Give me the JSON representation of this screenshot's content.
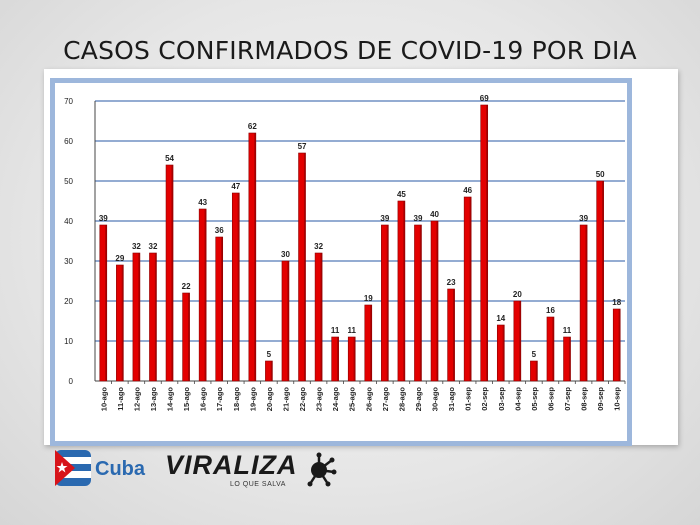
{
  "title": "CASOS CONFIRMADOS DE COVID-19 POR DIA",
  "logos": {
    "cuba": "Cuba",
    "viraliza": "VIRALIZA",
    "viraliza_tagline": "LO QUE SALVA"
  },
  "colors": {
    "bar": "#e30000",
    "bar_dark": "#8b0000",
    "grid": "#2a5aa6",
    "frame_border": "#9db7dc"
  },
  "chart_data": {
    "type": "bar",
    "title": "CASOS CONFIRMADOS DE COVID-19 POR DIA",
    "xlabel": "",
    "ylabel": "",
    "ylim": [
      0,
      70
    ],
    "yticks": [
      0,
      10,
      20,
      30,
      40,
      50,
      60,
      70
    ],
    "grid": true,
    "legend": "none",
    "categories": [
      "10-ago",
      "11-ago",
      "12-ago",
      "13-ago",
      "14-ago",
      "15-ago",
      "16-ago",
      "17-ago",
      "18-ago",
      "19-ago",
      "20-ago",
      "21-ago",
      "22-ago",
      "23-ago",
      "24-ago",
      "25-ago",
      "26-ago",
      "27-ago",
      "28-ago",
      "29-ago",
      "30-ago",
      "31-ago",
      "01-sep",
      "02-sep",
      "03-sep",
      "04-sep",
      "05-sep",
      "06-sep",
      "07-sep",
      "08-sep",
      "09-sep",
      "10-sep"
    ],
    "values": [
      39,
      29,
      32,
      32,
      54,
      22,
      43,
      36,
      47,
      62,
      5,
      30,
      57,
      32,
      11,
      11,
      19,
      39,
      45,
      39,
      40,
      23,
      46,
      69,
      14,
      20,
      5,
      16,
      11,
      39,
      50,
      18
    ]
  }
}
